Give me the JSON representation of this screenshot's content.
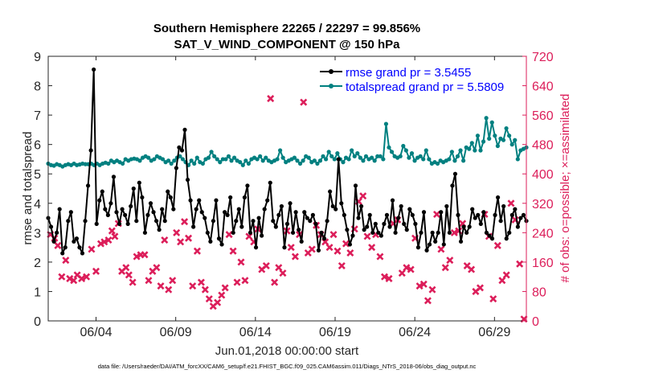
{
  "chart_data": {
    "type": "line",
    "title": "Southern Hemisphere 22265 / 22297 = 99.856%",
    "subtitle": "SAT_V_WIND_COMPONENT @ 150 hPa",
    "xlabel": "Jun.01,2018 00:00:00 start",
    "ylabel": "rmse and totalspread",
    "y2label": "# of obs: o=possible; ×=assimilated",
    "footnote": "data file: /Users/raeder/DAI/ATM_forcXX/CAM6_setup/f.e21.FHIST_BGC.f09_025.CAM6assim.011/Diags_NTrS_2018-06/obs_diag_output.nc",
    "xlim": [
      1.0,
      31.0
    ],
    "ylim": [
      0,
      9
    ],
    "y2lim": [
      0,
      720
    ],
    "x_ticks": [
      {
        "value": 4,
        "label": "06/04"
      },
      {
        "value": 9,
        "label": "06/09"
      },
      {
        "value": 14,
        "label": "06/14"
      },
      {
        "value": 19,
        "label": "06/19"
      },
      {
        "value": 24,
        "label": "06/24"
      },
      {
        "value": 29,
        "label": "06/29"
      }
    ],
    "y_ticks": [
      "0",
      "1",
      "2",
      "3",
      "4",
      "5",
      "6",
      "7",
      "8",
      "9"
    ],
    "y2_ticks": [
      "0",
      "80",
      "160",
      "240",
      "320",
      "400",
      "480",
      "560",
      "640",
      "720"
    ],
    "legend_position": "top-right",
    "colors": {
      "rmse": "#000000",
      "totalspread": "#008080",
      "obs": "#dc1e5a",
      "axis": "#262626",
      "legend_text": "#0000ff"
    },
    "series": [
      {
        "name": "rmse grand pr = 3.5455",
        "axis": "left",
        "values": [
          3.5,
          3.2,
          2.7,
          3.0,
          3.8,
          2.3,
          2.5,
          3.4,
          3.7,
          2.7,
          2.8,
          2.5,
          2.3,
          3.4,
          4.6,
          5.8,
          8.55,
          3.3,
          4.1,
          4.4,
          3.8,
          3.6,
          4.0,
          4.9,
          3.7,
          3.3,
          3.8,
          3.6,
          3.3,
          3.9,
          4.5,
          3.4,
          4.7,
          4.2,
          3.0,
          3.6,
          4.0,
          3.7,
          3.4,
          3.1,
          3.8,
          3.4,
          4.4,
          4.2,
          3.8,
          5.2,
          5.9,
          5.8,
          6.5,
          4.8,
          4.1,
          3.2,
          3.8,
          4.1,
          3.7,
          3.5,
          3.0,
          2.7,
          3.4,
          4.1,
          2.8,
          2.6,
          3.7,
          3.6,
          4.2,
          3.0,
          3.4,
          3.8,
          3.2,
          4.2,
          4.6,
          3.0,
          3.4,
          2.5,
          3.5,
          2.9,
          3.8,
          4.1,
          4.7,
          3.4,
          3.2,
          3.6,
          3.9,
          2.5,
          3.3,
          4.0,
          3.0,
          3.7,
          3.1,
          2.7,
          3.7,
          3.5,
          3.4,
          3.6,
          3.3,
          2.4,
          3.0,
          2.8,
          3.4,
          4.4,
          3.9,
          3.8,
          5.5,
          4.0,
          3.6,
          3.1,
          2.6,
          2.9,
          4.6,
          3.5,
          3.9,
          3.1,
          3.2,
          3.6,
          3.0,
          3.3,
          3.0,
          2.9,
          3.3,
          3.6,
          3.2,
          4.1,
          3.0,
          3.5,
          3.9,
          3.3,
          3.1,
          3.8,
          3.6,
          3.3,
          2.5,
          3.0,
          3.7,
          2.4,
          2.6,
          3.0,
          2.7,
          3.0,
          3.7,
          2.6,
          3.9,
          3.0,
          4.6,
          5.0,
          3.6,
          2.7,
          3.2,
          3.0,
          3.2,
          3.8,
          3.5,
          3.6,
          3.3,
          3.7,
          3.0,
          2.9,
          2.8,
          3.6,
          4.2,
          3.4,
          3.9,
          2.8,
          3.0,
          3.6,
          3.8,
          3.2,
          3.5,
          3.6,
          3.4
        ],
        "legend_label": "rmse grand pr = 3.5455"
      },
      {
        "name": "totalspread grand pr = 5.5809",
        "axis": "left",
        "values": [
          5.35,
          5.3,
          5.28,
          5.33,
          5.3,
          5.25,
          5.3,
          5.33,
          5.3,
          5.35,
          5.3,
          5.32,
          5.35,
          5.33,
          5.33,
          5.35,
          5.3,
          5.35,
          5.3,
          5.35,
          5.38,
          5.35,
          5.45,
          5.4,
          5.45,
          5.4,
          5.35,
          5.5,
          5.45,
          5.5,
          5.52,
          5.5,
          5.45,
          5.55,
          5.6,
          5.55,
          5.45,
          5.5,
          5.6,
          5.55,
          5.5,
          5.4,
          5.45,
          5.35,
          5.45,
          5.55,
          5.6,
          5.5,
          5.4,
          5.3,
          5.45,
          5.35,
          5.55,
          5.4,
          5.35,
          5.5,
          5.55,
          5.75,
          5.6,
          5.5,
          5.4,
          5.5,
          5.5,
          5.6,
          5.45,
          5.55,
          5.45,
          5.4,
          5.3,
          5.45,
          5.35,
          5.5,
          5.55,
          5.5,
          5.6,
          5.45,
          5.55,
          5.45,
          5.4,
          5.45,
          5.5,
          5.8,
          5.55,
          5.4,
          5.45,
          5.5,
          5.55,
          5.45,
          5.35,
          5.45,
          5.6,
          5.55,
          5.4,
          5.45,
          5.35,
          5.45,
          5.6,
          5.5,
          5.75,
          5.6,
          5.5,
          5.7,
          5.5,
          5.4,
          5.55,
          5.5,
          5.8,
          5.6,
          5.7,
          5.55,
          5.45,
          5.6,
          5.5,
          5.55,
          5.45,
          5.6,
          5.6,
          5.5,
          6.7,
          5.9,
          5.75,
          5.6,
          5.55,
          5.6,
          5.95,
          5.8,
          5.55,
          5.7,
          5.45,
          5.55,
          5.6,
          5.5,
          5.8,
          5.5,
          5.35,
          5.4,
          5.35,
          5.45,
          5.4,
          5.45,
          5.5,
          5.75,
          5.45,
          5.6,
          5.8,
          5.45,
          5.9,
          5.85,
          6.05,
          5.8,
          6.3,
          5.8,
          6.1,
          6.9,
          6.2,
          6.75,
          6.3,
          5.95,
          6.2,
          6.15,
          6.55,
          6.3,
          6.0,
          6.15,
          5.5,
          5.8,
          5.85,
          5.9
        ],
        "legend_label": "totalspread grand pr = 5.5809"
      },
      {
        "name": "# obs assimilated",
        "axis": "right",
        "marker": "×",
        "points": [
          [
            1.14,
            235
          ],
          [
            1.4,
            225
          ],
          [
            1.6,
            205
          ],
          [
            1.85,
            120
          ],
          [
            2.1,
            165
          ],
          [
            2.35,
            115
          ],
          [
            2.6,
            110
          ],
          [
            2.82,
            125
          ],
          [
            3.1,
            115
          ],
          [
            3.4,
            120
          ],
          [
            3.72,
            195
          ],
          [
            4.0,
            135
          ],
          [
            4.3,
            210
          ],
          [
            4.52,
            215
          ],
          [
            4.78,
            220
          ],
          [
            5.0,
            245
          ],
          [
            5.18,
            230
          ],
          [
            5.4,
            265
          ],
          [
            5.62,
            135
          ],
          [
            5.88,
            145
          ],
          [
            6.06,
            125
          ],
          [
            6.3,
            105
          ],
          [
            6.55,
            175
          ],
          [
            6.8,
            180
          ],
          [
            7.05,
            180
          ],
          [
            7.3,
            110
          ],
          [
            7.55,
            135
          ],
          [
            7.8,
            145
          ],
          [
            8.06,
            95
          ],
          [
            8.3,
            220
          ],
          [
            8.55,
            85
          ],
          [
            8.8,
            110
          ],
          [
            9.05,
            240
          ],
          [
            9.3,
            215
          ],
          [
            9.55,
            270
          ],
          [
            9.8,
            225
          ],
          [
            10.06,
            95
          ],
          [
            10.35,
            190
          ],
          [
            10.6,
            105
          ],
          [
            10.85,
            85
          ],
          [
            11.1,
            60
          ],
          [
            11.35,
            40
          ],
          [
            11.62,
            50
          ],
          [
            11.88,
            70
          ],
          [
            12.1,
            90
          ],
          [
            12.35,
            235
          ],
          [
            12.6,
            190
          ],
          [
            12.85,
            105
          ],
          [
            13.1,
            160
          ],
          [
            13.35,
            110
          ],
          [
            13.6,
            230
          ],
          [
            13.9,
            215
          ],
          [
            14.15,
            250
          ],
          [
            14.4,
            140
          ],
          [
            14.68,
            150
          ],
          [
            14.95,
            605
          ],
          [
            15.2,
            105
          ],
          [
            15.46,
            145
          ],
          [
            15.72,
            130
          ],
          [
            15.98,
            245
          ],
          [
            16.24,
            200
          ],
          [
            16.5,
            175
          ],
          [
            16.76,
            235
          ],
          [
            17.02,
            595
          ],
          [
            17.3,
            185
          ],
          [
            17.55,
            195
          ],
          [
            17.82,
            260
          ],
          [
            18.1,
            235
          ],
          [
            18.38,
            215
          ],
          [
            18.65,
            200
          ],
          [
            18.9,
            235
          ],
          [
            19.15,
            190
          ],
          [
            19.42,
            150
          ],
          [
            19.68,
            210
          ],
          [
            19.95,
            185
          ],
          [
            20.22,
            250
          ],
          [
            20.48,
            325
          ],
          [
            20.75,
            340
          ],
          [
            21.02,
            230
          ],
          [
            21.3,
            200
          ],
          [
            21.55,
            235
          ],
          [
            21.82,
            175
          ],
          [
            22.1,
            120
          ],
          [
            22.38,
            115
          ],
          [
            22.65,
            265
          ],
          [
            22.92,
            275
          ],
          [
            23.2,
            130
          ],
          [
            23.48,
            145
          ],
          [
            23.75,
            140
          ],
          [
            24.02,
            225
          ],
          [
            24.3,
            95
          ],
          [
            24.56,
            100
          ],
          [
            24.82,
            55
          ],
          [
            25.1,
            85
          ],
          [
            25.38,
            290
          ],
          [
            25.65,
            195
          ],
          [
            25.92,
            145
          ],
          [
            26.2,
            165
          ],
          [
            26.48,
            240
          ],
          [
            26.75,
            245
          ],
          [
            27.0,
            265
          ],
          [
            27.28,
            150
          ],
          [
            27.55,
            140
          ],
          [
            27.82,
            80
          ],
          [
            28.1,
            90
          ],
          [
            28.38,
            290
          ],
          [
            28.65,
            230
          ],
          [
            28.92,
            60
          ],
          [
            29.2,
            205
          ],
          [
            29.48,
            110
          ],
          [
            29.75,
            125
          ],
          [
            30.04,
            320
          ],
          [
            30.3,
            275
          ],
          [
            30.58,
            155
          ],
          [
            30.85,
            5
          ]
        ]
      }
    ]
  }
}
